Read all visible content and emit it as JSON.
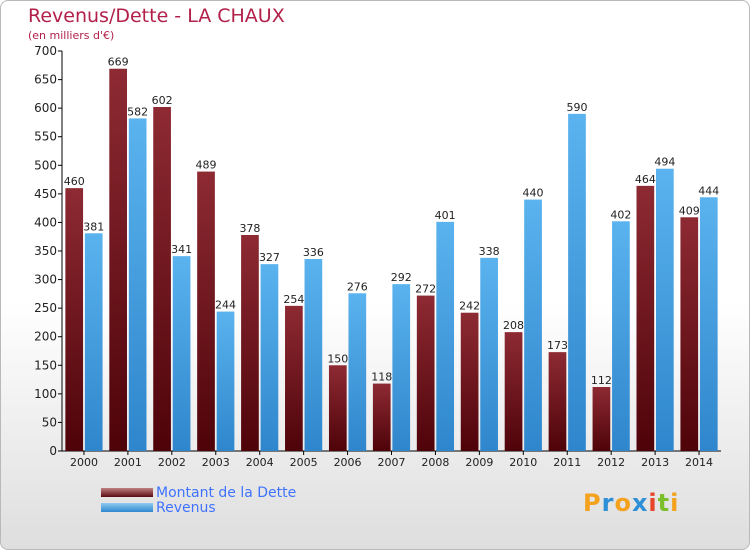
{
  "chart_data": {
    "type": "bar",
    "title": "Revenus/Dette - LA CHAUX",
    "subtitle": "(en milliers d'€)",
    "categories": [
      "2000",
      "2001",
      "2002",
      "2003",
      "2004",
      "2005",
      "2006",
      "2007",
      "2008",
      "2009",
      "2010",
      "2011",
      "2012",
      "2013",
      "2014"
    ],
    "series": [
      {
        "name": "Montant de la Dette",
        "color": "#7a1a22",
        "values": [
          460,
          669,
          602,
          489,
          378,
          254,
          150,
          118,
          272,
          242,
          208,
          173,
          112,
          464,
          409
        ]
      },
      {
        "name": "Revenus",
        "color": "#4aa6e8",
        "values": [
          381,
          582,
          341,
          244,
          327,
          336,
          276,
          292,
          401,
          338,
          440,
          590,
          402,
          494,
          444
        ]
      }
    ],
    "ylim": [
      0,
      700
    ],
    "yticks": [
      0,
      50,
      100,
      150,
      200,
      250,
      300,
      350,
      400,
      450,
      500,
      550,
      600,
      650,
      700
    ],
    "grid": false,
    "legend_position": "bottom-left"
  },
  "logo": {
    "letters": [
      "P",
      "r",
      "o",
      "x",
      "i",
      "t",
      "i"
    ],
    "colors": [
      "#f4a21e",
      "#2e8fd6",
      "#f4a21e",
      "#2e8fd6",
      "#e8442a",
      "#7bbf2b",
      "#f4a21e"
    ]
  }
}
